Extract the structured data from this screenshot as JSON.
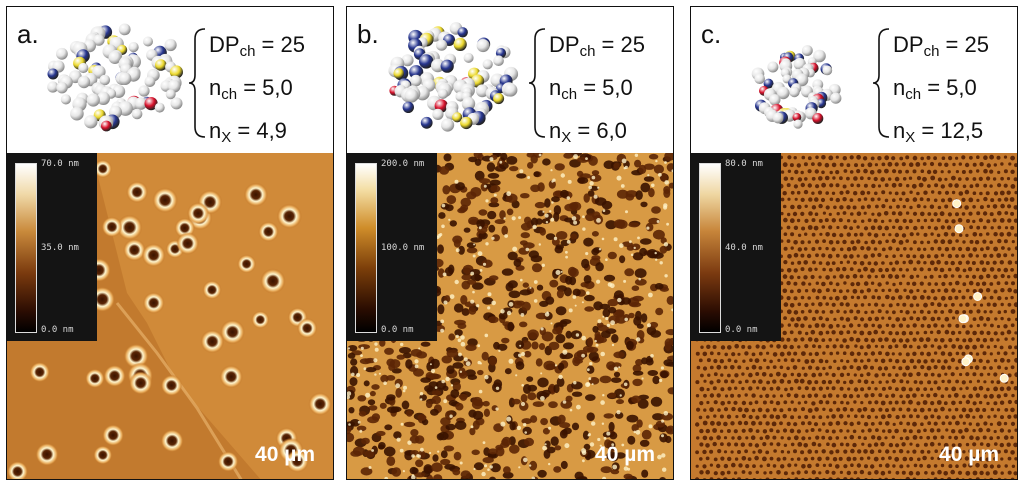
{
  "panels": [
    {
      "label": "a.",
      "params": {
        "dp_pre": "DP",
        "dp_sub": "ch",
        "dp_val": " = 25",
        "nch_pre": "n",
        "nch_sub": "ch",
        "nch_val": " = 5,0",
        "nx_pre": "n",
        "nx_sub": "X",
        "nx_val": " = 4,9"
      },
      "colorbar": {
        "max": "70.0 nm",
        "mid": "35.0 nm",
        "min": "0.0 nm"
      },
      "scale_bar": "40 µm"
    },
    {
      "label": "b.",
      "params": {
        "dp_pre": "DP",
        "dp_sub": "ch",
        "dp_val": " = 25",
        "nch_pre": "n",
        "nch_sub": "ch",
        "nch_val": " = 5,0",
        "nx_pre": "n",
        "nx_sub": "X",
        "nx_val": " = 6,0"
      },
      "colorbar": {
        "max": "200.0 nm",
        "mid": "100.0 nm",
        "min": "0.0 nm"
      },
      "scale_bar": "40 µm"
    },
    {
      "label": "c.",
      "params": {
        "dp_pre": "DP",
        "dp_sub": "ch",
        "dp_val": " = 25",
        "nch_pre": "n",
        "nch_sub": "ch",
        "nch_val": " = 5,0",
        "nx_pre": "n",
        "nx_sub": "X",
        "nx_val": " = 12,5"
      },
      "colorbar": {
        "max": "80.0 nm",
        "mid": "40.0 nm",
        "min": "0.0 nm"
      },
      "scale_bar": "40 µm"
    }
  ],
  "colors": {
    "bead_white": "#e6e6e6",
    "bead_blue": "#26358f",
    "bead_red": "#d8102a",
    "bead_yellow": "#ecd92c",
    "afm_dark": "#2a0e00",
    "afm_mid": "#b5641a",
    "afm_light": "#fff3c8"
  }
}
